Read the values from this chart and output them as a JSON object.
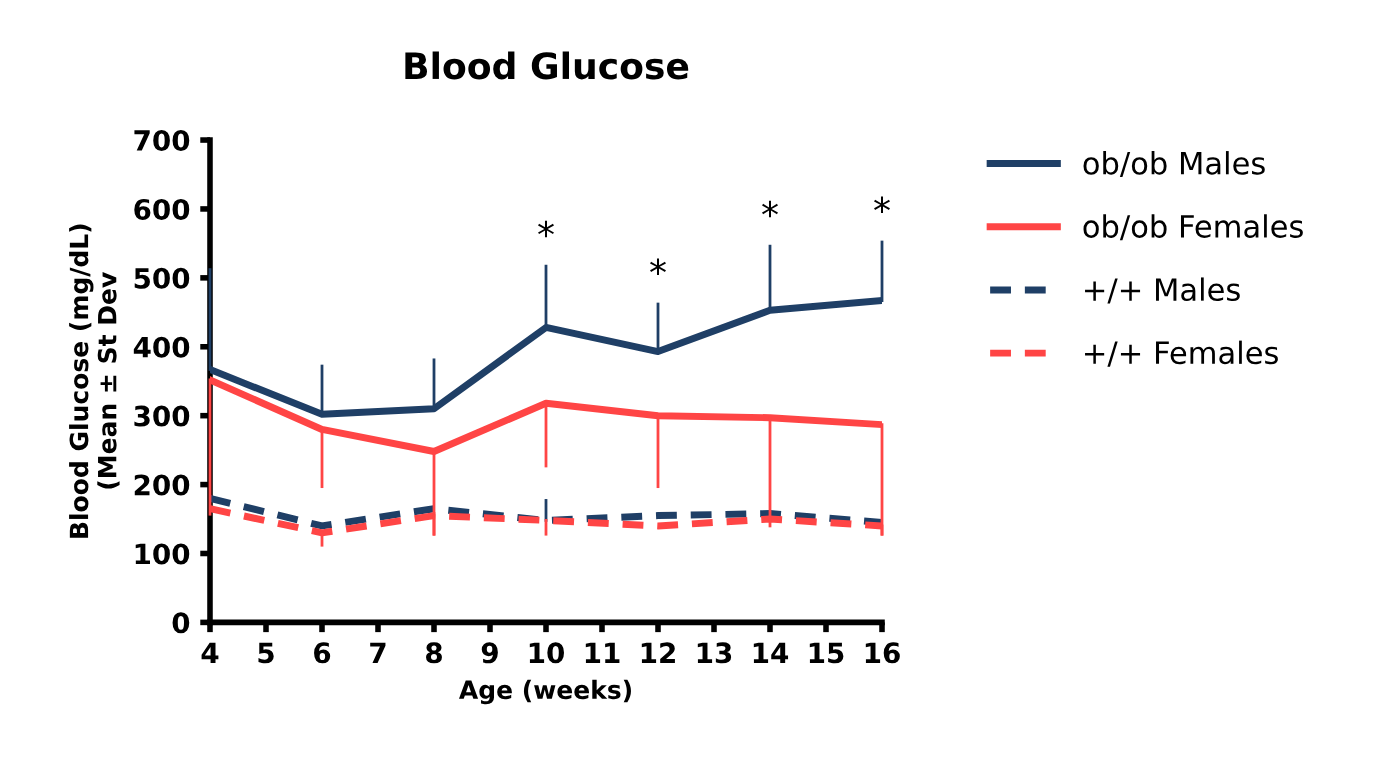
{
  "chart_data": {
    "type": "line",
    "title": "Blood Glucose",
    "xlabel": "Age (weeks)",
    "ylabel": "Blood Glucose (mg/dL)\n(Mean ± St Dev",
    "x": [
      4,
      6,
      8,
      10,
      12,
      14,
      16
    ],
    "series": [
      {
        "name": "ob/ob Males",
        "color": "#1f3f66",
        "line_style": "solid",
        "values": [
          367,
          302,
          310,
          428,
          393,
          453,
          467
        ],
        "errors": [
          [
            367,
            512
          ],
          [
            302,
            372
          ],
          [
            310,
            381
          ],
          [
            428,
            517
          ],
          [
            393,
            462
          ],
          [
            453,
            546
          ],
          [
            467,
            552
          ]
        ]
      },
      {
        "name": "ob/ob Females",
        "color": "#ff4545",
        "line_style": "solid",
        "values": [
          352,
          280,
          248,
          318,
          300,
          297,
          287
        ],
        "errors": [
          [
            157,
            352
          ],
          [
            197,
            280
          ],
          [
            128,
            248
          ],
          [
            227,
            318
          ],
          [
            197,
            300
          ],
          [
            140,
            297
          ],
          [
            128,
            287
          ]
        ]
      },
      {
        "name": "+/+ Males",
        "color": "#1f3f66",
        "line_style": "dashed",
        "values": [
          180,
          140,
          165,
          148,
          155,
          158,
          145
        ],
        "errors": [
          null,
          null,
          null,
          [
            148,
            177
          ],
          null,
          null,
          null
        ]
      },
      {
        "name": "+/+ Females",
        "color": "#ff4545",
        "line_style": "dashed",
        "values": [
          165,
          130,
          155,
          148,
          140,
          150,
          140
        ],
        "errors": [
          null,
          [
            112,
            130
          ],
          [
            128,
            155
          ],
          [
            128,
            148
          ],
          null,
          null,
          [
            128,
            140
          ]
        ]
      }
    ],
    "annotations": [
      {
        "text": "*",
        "x": 10,
        "y": 517
      },
      {
        "text": "*",
        "x": 12,
        "y": 462
      },
      {
        "text": "*",
        "x": 14,
        "y": 546
      },
      {
        "text": "*",
        "x": 16,
        "y": 552
      }
    ],
    "xlim": [
      4,
      16
    ],
    "xticks": [
      4,
      5,
      6,
      7,
      8,
      9,
      10,
      11,
      12,
      13,
      14,
      15,
      16
    ],
    "ylim": [
      0,
      700
    ],
    "yticks": [
      0,
      100,
      200,
      300,
      400,
      500,
      600,
      700
    ],
    "legend": "right",
    "grid": false,
    "marker": "none"
  }
}
